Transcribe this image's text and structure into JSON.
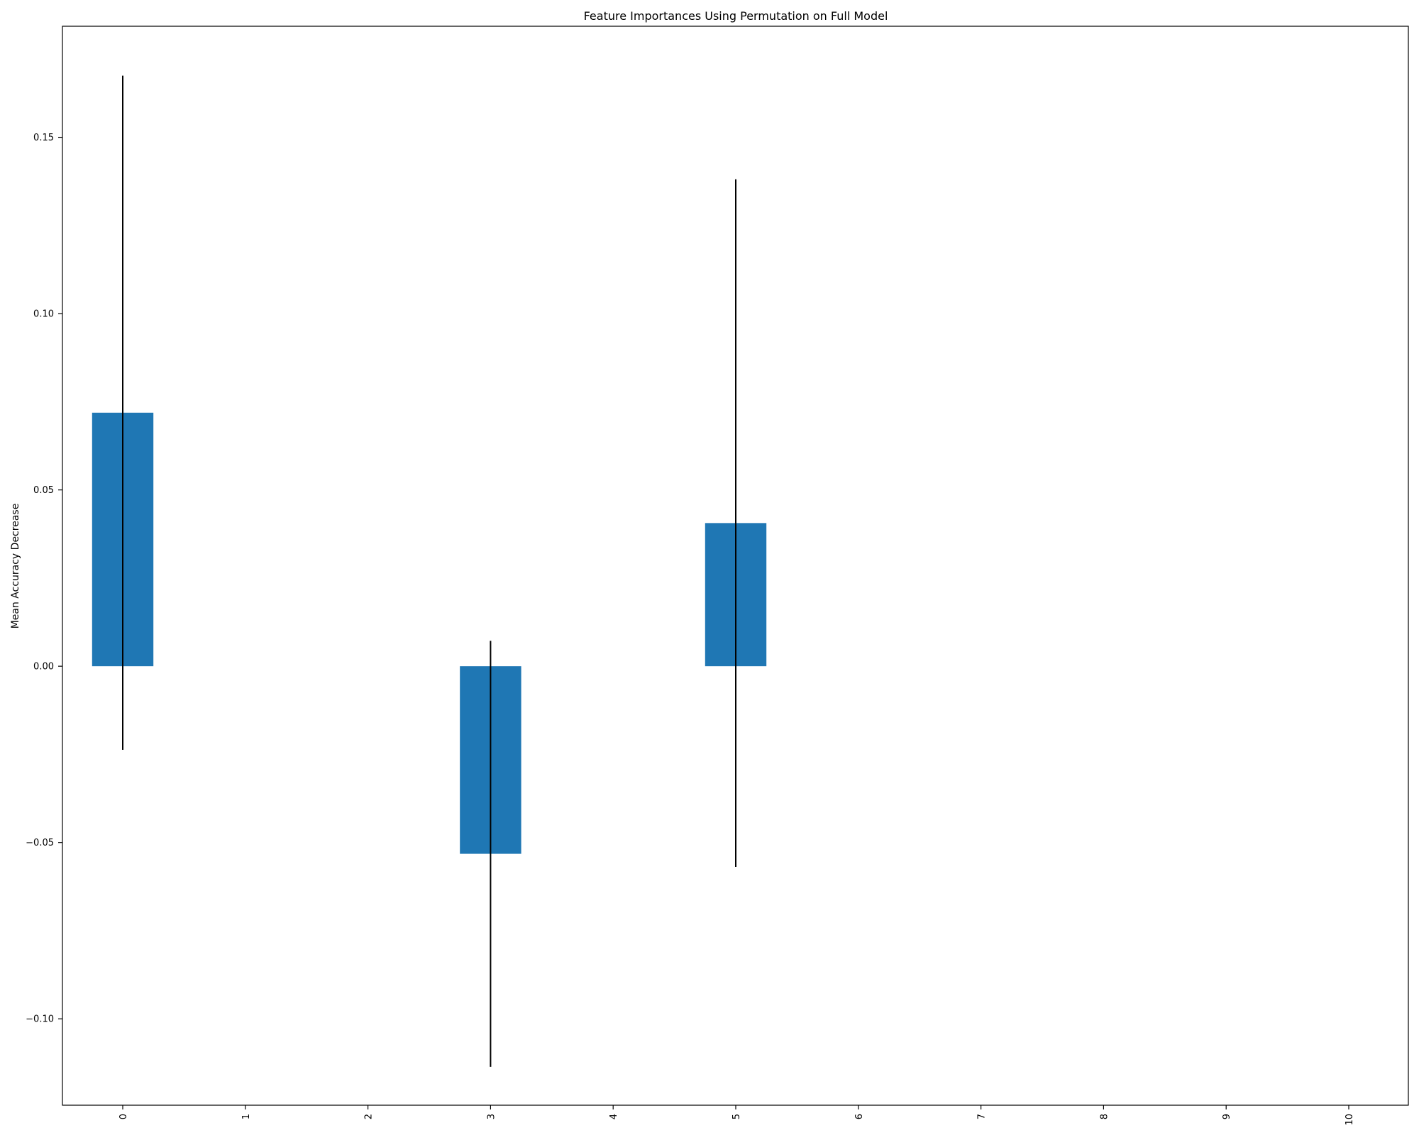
{
  "chart_data": {
    "type": "bar",
    "title": "Feature Importances Using Permutation on Full Model",
    "xlabel": "",
    "ylabel": "Mean Accuracy Decrease",
    "categories": [
      "0",
      "1",
      "2",
      "3",
      "4",
      "5",
      "6",
      "7",
      "8",
      "9",
      "10"
    ],
    "values": [
      0.0719,
      0,
      0,
      -0.0532,
      0,
      0.0406,
      0,
      0,
      0,
      0,
      0
    ],
    "errors": [
      0.0956,
      0,
      0,
      0.0604,
      0,
      0.0975,
      0,
      0,
      0,
      0,
      0
    ],
    "ylim": [
      -0.1245,
      0.1815
    ],
    "yticks": [
      -0.1,
      -0.05,
      0.0,
      0.05,
      0.1,
      0.15
    ],
    "ytick_labels": [
      "−0.10",
      "−0.05",
      "0.00",
      "0.05",
      "0.10",
      "0.15"
    ],
    "xtick_rotation": "vertical",
    "grid": false,
    "legend": "none",
    "colors": {
      "bar": "#1f77b4",
      "error_bar": "#000000",
      "axes": "#000000"
    }
  }
}
